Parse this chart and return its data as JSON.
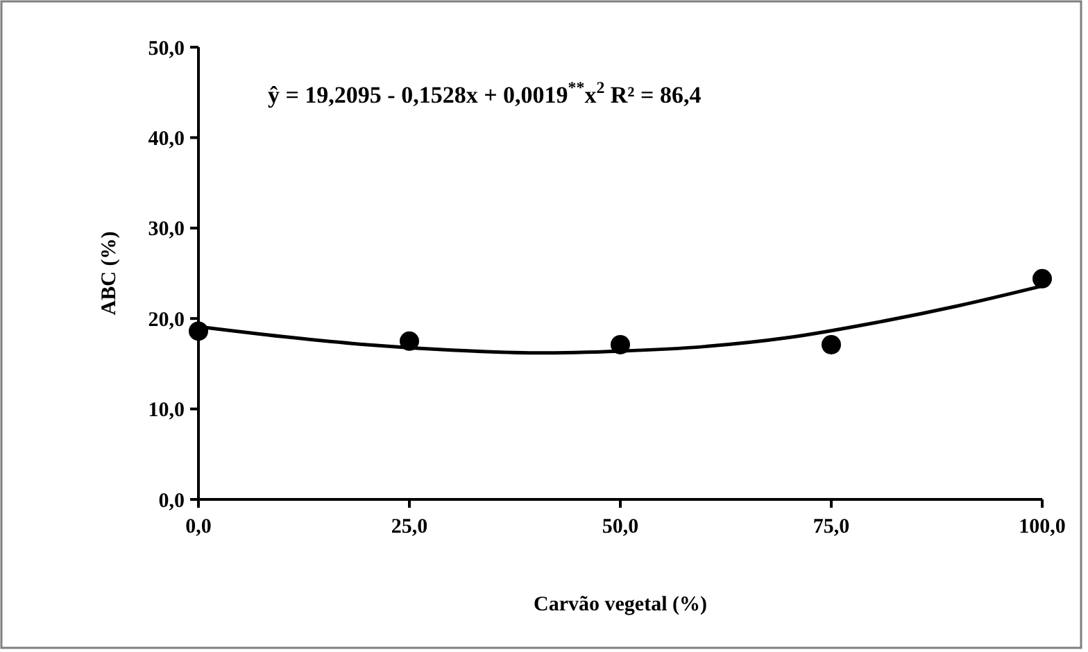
{
  "chart_data": {
    "type": "scatter",
    "xlabel": "Carvão vegetal (%)",
    "ylabel": "ABC (%)",
    "annotations": [
      "ŷ = 19,2095 - 0,1528x + 0,0019$^{**}$x$^{2}$ R² = 86,4"
    ],
    "x": [
      0,
      25,
      50,
      75,
      100
    ],
    "xlim": [
      0,
      100
    ],
    "xticks": [
      {
        "value": 0,
        "label": "0,0"
      },
      {
        "value": 25,
        "label": "25,0"
      },
      {
        "value": 50,
        "label": "50,0"
      },
      {
        "value": 75,
        "label": "75,0"
      },
      {
        "value": 100,
        "label": "100,0"
      }
    ],
    "ylim": [
      0,
      50
    ],
    "yticks": [
      {
        "value": 0,
        "label": "0,0"
      },
      {
        "value": 10,
        "label": "10,0"
      },
      {
        "value": 20,
        "label": "20,0"
      },
      {
        "value": 30,
        "label": "30,0"
      },
      {
        "value": 40,
        "label": "40,0"
      },
      {
        "value": 50,
        "label": "50,0"
      }
    ],
    "grid": false,
    "marker": "circle",
    "series": [
      {
        "color": "#000000",
        "values": [
          18.6,
          17.5,
          17.1,
          17.1,
          24.4
        ]
      },
      {
        "type": "line",
        "color": "#000000",
        "line_style": "solid",
        "marker": "none",
        "x": [
          0,
          10,
          20,
          30,
          40,
          50,
          60,
          70,
          80,
          90,
          100
        ],
        "values": [
          19.1,
          18.0,
          17.1,
          16.5,
          16.2,
          16.4,
          16.9,
          17.9,
          19.5,
          21.4,
          23.6
        ]
      }
    ]
  }
}
